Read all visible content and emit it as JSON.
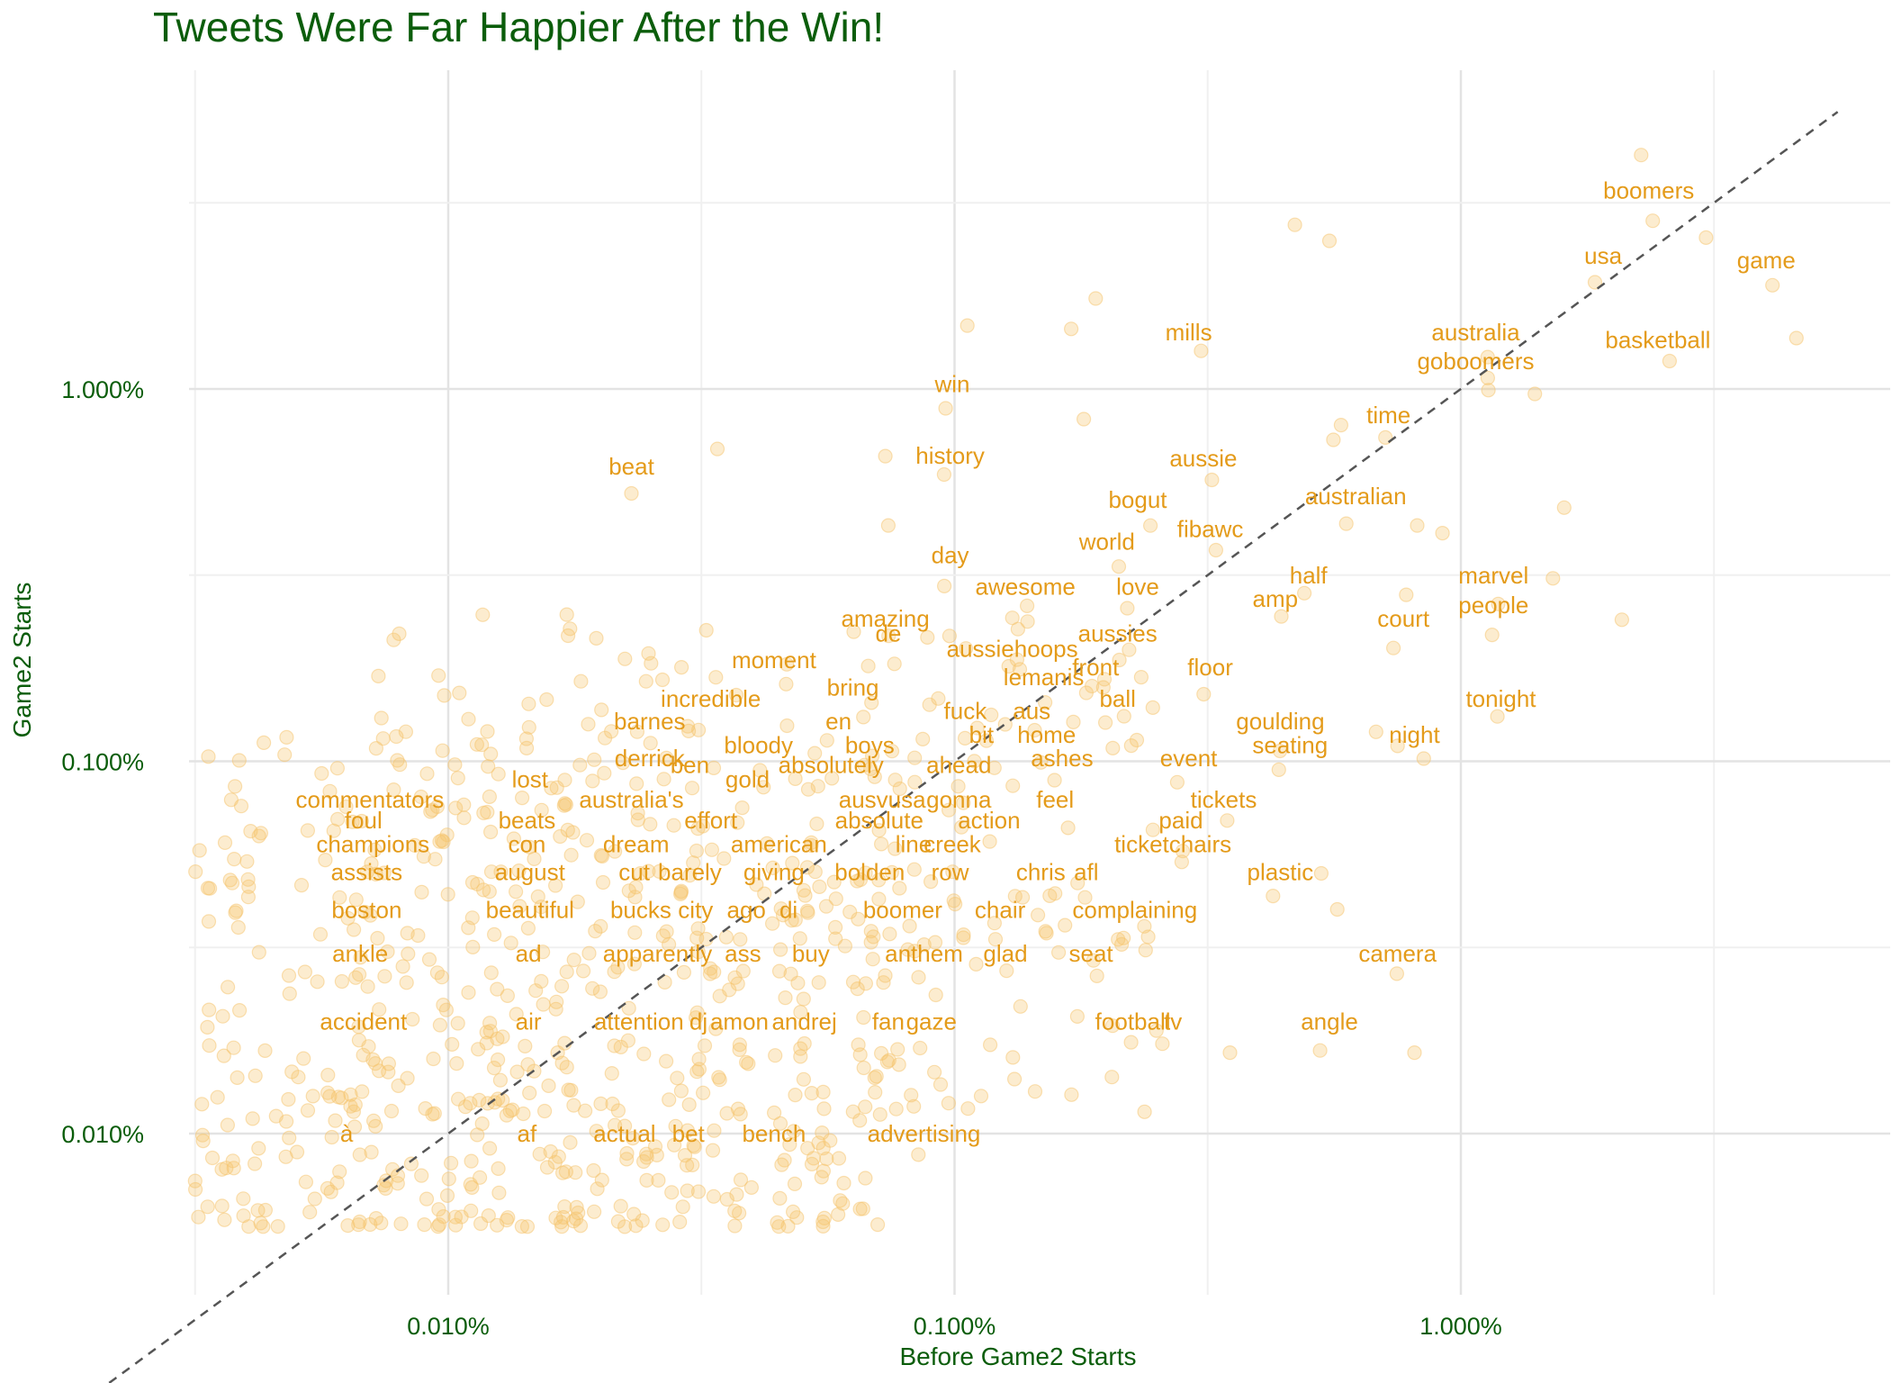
{
  "colors": {
    "title": "#0b5d0b",
    "axis_text": "#0b5d0b",
    "points": "#f5c46b",
    "labels": "#e49b1a",
    "grid_major": "#e3e3e3",
    "grid_minor": "#f0f0f0",
    "reference_line": "#555555"
  },
  "chart_data": {
    "type": "scatter",
    "title": "Tweets Were Far Happier After the Win!",
    "xlabel": "Before Game2 Starts",
    "ylabel": "Game2 Starts",
    "x_scale": "log10",
    "y_scale": "log10",
    "xlim_percent": [
      0.0017,
      0.85
    ],
    "ylim_percent": [
      0.0036,
      0.58
    ],
    "x_ticks": [
      0.01,
      0.1,
      1.0
    ],
    "x_tick_labels": [
      "0.010%",
      "0.100%",
      "1.000%"
    ],
    "y_ticks": [
      0.01,
      0.1,
      1.0
    ],
    "y_tick_labels": [
      "0.010%",
      "0.100%",
      "1.000%"
    ],
    "reference_line": "y = x",
    "grid": true,
    "labeled_words": [
      {
        "word": "boomers",
        "x": 0.0235,
        "y": 0.0325
      },
      {
        "word": "usa",
        "x": 0.0191,
        "y": 0.0217
      },
      {
        "word": "game",
        "x": 0.0401,
        "y": 0.0211
      },
      {
        "word": "australia",
        "x": 0.0107,
        "y": 0.0135
      },
      {
        "word": "basketball",
        "x": 0.0245,
        "y": 0.0129
      },
      {
        "word": "goboomers",
        "x": 0.0107,
        "y": 0.0113
      },
      {
        "word": "mills",
        "x": 0.0029,
        "y": 0.0135
      },
      {
        "word": "win",
        "x": 0.00099,
        "y": 0.0098
      },
      {
        "word": "time",
        "x": 0.0072,
        "y": 0.0081
      },
      {
        "word": "beat",
        "x": 0.00023,
        "y": 0.0059
      },
      {
        "word": "history",
        "x": 0.00098,
        "y": 0.0063
      },
      {
        "word": "aussie",
        "x": 0.0031,
        "y": 0.0062
      },
      {
        "word": "bogut",
        "x": 0.0023,
        "y": 0.0048
      },
      {
        "word": "australian",
        "x": 0.0062,
        "y": 0.0049
      },
      {
        "word": "fibawc",
        "x": 0.0032,
        "y": 0.004
      },
      {
        "word": "world",
        "x": 0.002,
        "y": 0.0037
      },
      {
        "word": "day",
        "x": 0.00098,
        "y": 0.0034
      },
      {
        "word": "half",
        "x": 0.005,
        "y": 0.003
      },
      {
        "word": "marvel",
        "x": 0.0116,
        "y": 0.003
      },
      {
        "word": "awesome",
        "x": 0.00138,
        "y": 0.0028
      },
      {
        "word": "love",
        "x": 0.0023,
        "y": 0.0028
      },
      {
        "word": "amp",
        "x": 0.0043,
        "y": 0.0026
      },
      {
        "word": "people",
        "x": 0.0116,
        "y": 0.0025
      },
      {
        "word": "court",
        "x": 0.0077,
        "y": 0.0023
      },
      {
        "word": "amazing",
        "x": 0.00073,
        "y": 0.0023
      },
      {
        "word": "de",
        "x": 0.00074,
        "y": 0.0021
      },
      {
        "word": "aussies",
        "x": 0.0021,
        "y": 0.0021
      },
      {
        "word": "aussiehoops",
        "x": 0.0013,
        "y": 0.00191
      },
      {
        "word": "moment",
        "x": 0.00044,
        "y": 0.00178
      },
      {
        "word": "front",
        "x": 0.0019,
        "y": 0.0017
      },
      {
        "word": "floor",
        "x": 0.0032,
        "y": 0.0017
      },
      {
        "word": "lemanis",
        "x": 0.0015,
        "y": 0.0016
      },
      {
        "word": "bring",
        "x": 0.00063,
        "y": 0.0015
      },
      {
        "word": "incredible",
        "x": 0.00033,
        "y": 0.0014
      },
      {
        "word": "ball",
        "x": 0.0021,
        "y": 0.0014
      },
      {
        "word": "tonight",
        "x": 0.012,
        "y": 0.0014
      },
      {
        "word": "fuck",
        "x": 0.00105,
        "y": 0.0013
      },
      {
        "word": "aus",
        "x": 0.00142,
        "y": 0.0013
      },
      {
        "word": "barnes",
        "x": 0.00025,
        "y": 0.00122
      },
      {
        "word": "en",
        "x": 0.00059,
        "y": 0.00122
      },
      {
        "word": "goulding",
        "x": 0.0044,
        "y": 0.00122
      },
      {
        "word": "bit",
        "x": 0.00113,
        "y": 0.00112
      },
      {
        "word": "home",
        "x": 0.00152,
        "y": 0.00112
      },
      {
        "word": "night",
        "x": 0.0081,
        "y": 0.00112
      },
      {
        "word": "bloody",
        "x": 0.00041,
        "y": 0.00105
      },
      {
        "word": "boys",
        "x": 0.00068,
        "y": 0.00105
      },
      {
        "word": "seating",
        "x": 0.0046,
        "y": 0.00105
      },
      {
        "word": "ashes",
        "x": 0.00163,
        "y": 0.00097
      },
      {
        "word": "event",
        "x": 0.0029,
        "y": 0.00097
      },
      {
        "word": "derrick",
        "x": 0.00025,
        "y": 0.00097
      },
      {
        "word": "ben",
        "x": 0.0003,
        "y": 0.00093
      },
      {
        "word": "absolutely",
        "x": 0.00057,
        "y": 0.00093
      },
      {
        "word": "ahead",
        "x": 0.00102,
        "y": 0.00093
      },
      {
        "word": "gold",
        "x": 0.00039,
        "y": 0.00085
      },
      {
        "word": "lost",
        "x": 0.000145,
        "y": 0.00085
      },
      {
        "word": "commentators",
        "x": 7e-05,
        "y": 0.00075
      },
      {
        "word": "australia's",
        "x": 0.00023,
        "y": 0.00075
      },
      {
        "word": "ausvusa",
        "x": 0.00072,
        "y": 0.00075
      },
      {
        "word": "gonna",
        "x": 0.00102,
        "y": 0.00075
      },
      {
        "word": "feel",
        "x": 0.00158,
        "y": 0.00075
      },
      {
        "word": "tickets",
        "x": 0.0034,
        "y": 0.00075
      },
      {
        "word": "foul",
        "x": 6.8e-05,
        "y": 0.00066
      },
      {
        "word": "beats",
        "x": 0.000143,
        "y": 0.00066
      },
      {
        "word": "effort",
        "x": 0.00033,
        "y": 0.00066
      },
      {
        "word": "absolute",
        "x": 0.00071,
        "y": 0.00066
      },
      {
        "word": "action",
        "x": 0.00117,
        "y": 0.00066
      },
      {
        "word": "paid",
        "x": 0.0028,
        "y": 0.00066
      },
      {
        "word": "champions",
        "x": 7.1e-05,
        "y": 0.00057
      },
      {
        "word": "con",
        "x": 0.000143,
        "y": 0.00057
      },
      {
        "word": "dream",
        "x": 0.000235,
        "y": 0.00057
      },
      {
        "word": "american",
        "x": 0.00045,
        "y": 0.00057
      },
      {
        "word": "line",
        "x": 0.00083,
        "y": 0.00057
      },
      {
        "word": "creek",
        "x": 0.00099,
        "y": 0.00057
      },
      {
        "word": "ticketchairs",
        "x": 0.0027,
        "y": 0.00057
      },
      {
        "word": "assists",
        "x": 6.9e-05,
        "y": 0.00048
      },
      {
        "word": "august",
        "x": 0.000145,
        "y": 0.00048
      },
      {
        "word": "cut",
        "x": 0.000233,
        "y": 0.00048
      },
      {
        "word": "barely",
        "x": 0.0003,
        "y": 0.00048
      },
      {
        "word": "giving",
        "x": 0.00044,
        "y": 0.00048
      },
      {
        "word": "bolden",
        "x": 0.00068,
        "y": 0.00048
      },
      {
        "word": "row",
        "x": 0.00098,
        "y": 0.00048
      },
      {
        "word": "chris",
        "x": 0.00148,
        "y": 0.00048
      },
      {
        "word": "afl",
        "x": 0.00182,
        "y": 0.00048
      },
      {
        "word": "plastic",
        "x": 0.0044,
        "y": 0.00048
      },
      {
        "word": "boston",
        "x": 6.9e-05,
        "y": 0.00038
      },
      {
        "word": "beautiful",
        "x": 0.000145,
        "y": 0.00038
      },
      {
        "word": "bucks",
        "x": 0.00024,
        "y": 0.00038
      },
      {
        "word": "city",
        "x": 0.000308,
        "y": 0.00038
      },
      {
        "word": "ago",
        "x": 0.000388,
        "y": 0.00038
      },
      {
        "word": "di",
        "x": 0.00047,
        "y": 0.00038
      },
      {
        "word": "boomer",
        "x": 0.00079,
        "y": 0.00038
      },
      {
        "word": "chair",
        "x": 0.00123,
        "y": 0.00038
      },
      {
        "word": "complaining",
        "x": 0.00227,
        "y": 0.00038
      },
      {
        "word": "ankle",
        "x": 6.7e-05,
        "y": 0.00029
      },
      {
        "word": "ad",
        "x": 0.000144,
        "y": 0.00029
      },
      {
        "word": "apparently",
        "x": 0.000259,
        "y": 0.00029
      },
      {
        "word": "ass",
        "x": 0.000382,
        "y": 0.00029
      },
      {
        "word": "buy",
        "x": 0.00052,
        "y": 0.00029
      },
      {
        "word": "anthem",
        "x": 0.00087,
        "y": 0.00029
      },
      {
        "word": "glad",
        "x": 0.00126,
        "y": 0.00029
      },
      {
        "word": "seat",
        "x": 0.00186,
        "y": 0.00029
      },
      {
        "word": "camera",
        "x": 0.0075,
        "y": 0.00029
      },
      {
        "word": "accident",
        "x": 6.8e-05,
        "y": 0.00019
      },
      {
        "word": "air",
        "x": 0.000144,
        "y": 0.00019
      },
      {
        "word": "attention",
        "x": 0.000238,
        "y": 0.00019
      },
      {
        "word": "dj",
        "x": 0.000312,
        "y": 0.00019
      },
      {
        "word": "amon",
        "x": 0.000376,
        "y": 0.00019
      },
      {
        "word": "andrej",
        "x": 0.000505,
        "y": 0.00019
      },
      {
        "word": "fan",
        "x": 0.00074,
        "y": 0.00019
      },
      {
        "word": "gaze",
        "x": 0.0009,
        "y": 0.00019
      },
      {
        "word": "football",
        "x": 0.00225,
        "y": 0.00019
      },
      {
        "word": "tv",
        "x": 0.0027,
        "y": 0.00019
      },
      {
        "word": "angle",
        "x": 0.0055,
        "y": 0.00019
      },
      {
        "word": "à",
        "x": 6.3e-05,
        "y": 9.5e-05
      },
      {
        "word": "af",
        "x": 0.000143,
        "y": 9.5e-05
      },
      {
        "word": "actual",
        "x": 0.000223,
        "y": 9.5e-05
      },
      {
        "word": "bet",
        "x": 0.000298,
        "y": 9.5e-05
      },
      {
        "word": "bench",
        "x": 0.00044,
        "y": 9.5e-05
      },
      {
        "word": "advertising",
        "x": 0.00087,
        "y": 9.5e-05
      }
    ],
    "outlier_points": [
      {
        "x": 0.0227,
        "y": 0.0425
      },
      {
        "x": 0.0305,
        "y": 0.0255
      },
      {
        "x": 0.046,
        "y": 0.0137
      },
      {
        "x": 0.0047,
        "y": 0.0276
      },
      {
        "x": 0.0055,
        "y": 0.025
      },
      {
        "x": 0.016,
        "y": 0.0048
      },
      {
        "x": 0.0152,
        "y": 0.0031
      },
      {
        "x": 0.0208,
        "y": 0.0024
      },
      {
        "x": 0.014,
        "y": 0.0097
      },
      {
        "x": 0.0092,
        "y": 0.0041
      },
      {
        "x": 0.0082,
        "y": 0.0043
      },
      {
        "x": 0.0113,
        "y": 0.0107
      },
      {
        "x": 0.0019,
        "y": 0.0175
      },
      {
        "x": 0.0017,
        "y": 0.0145
      },
      {
        "x": 0.00106,
        "y": 0.0148
      },
      {
        "x": 0.0018,
        "y": 0.0083
      },
      {
        "x": 0.00034,
        "y": 0.0069
      },
      {
        "x": 0.00073,
        "y": 0.0066
      },
      {
        "x": 0.00074,
        "y": 0.0043
      },
      {
        "x": 0.0056,
        "y": 0.0073
      },
      {
        "x": 0.0058,
        "y": 0.008
      },
      {
        "x": 0.0078,
        "y": 0.0028
      },
      {
        "x": 0.0075,
        "y": 0.0011
      },
      {
        "x": 0.0068,
        "y": 0.0012
      },
      {
        "x": 0.0053,
        "y": 0.0005
      },
      {
        "x": 0.0057,
        "y": 0.0004
      },
      {
        "x": 0.0081,
        "y": 0.000165
      },
      {
        "x": 0.0035,
        "y": 0.000165
      },
      {
        "x": 8e-05,
        "y": 0.0022
      }
    ]
  }
}
